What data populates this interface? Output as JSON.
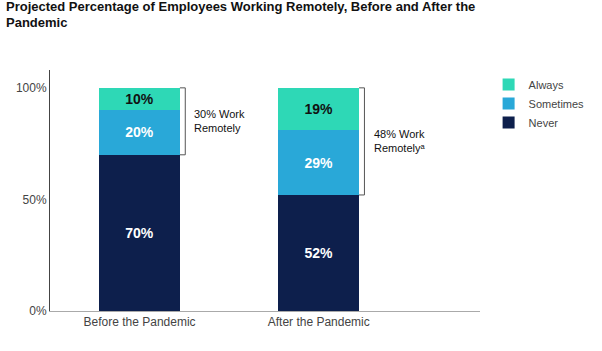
{
  "chart_data": {
    "type": "bar",
    "stacked": true,
    "title": "Projected Percentage of Employees Working Remotely, Before and After the\nPandemic",
    "categories": [
      "Before the Pandemic",
      "After the Pandemic"
    ],
    "series": [
      {
        "name": "Never",
        "color": "#0d1f4c",
        "values": [
          70,
          52
        ],
        "value_labels": [
          "70%",
          "52%"
        ]
      },
      {
        "name": "Sometimes",
        "color": "#29a8d8",
        "values": [
          20,
          29
        ],
        "value_labels": [
          "20%",
          "29%"
        ]
      },
      {
        "name": "Always",
        "color": "#2ed8b6",
        "values": [
          10,
          19
        ],
        "value_labels": [
          "10%",
          "19%"
        ]
      }
    ],
    "data_labels": true,
    "ylim": [
      0,
      108
    ],
    "yticks": [
      {
        "value": 0,
        "label": "0%"
      },
      {
        "value": 50,
        "label": "50%"
      },
      {
        "value": 100,
        "label": "100%"
      }
    ],
    "grid": false,
    "legend": "upper right",
    "annotations": [
      {
        "category": "Before the Pandemic",
        "text": "30% Work\nRemotely"
      },
      {
        "category": "After the Pandemic",
        "text": "48% Work\nRemotelyᵃ"
      }
    ]
  }
}
